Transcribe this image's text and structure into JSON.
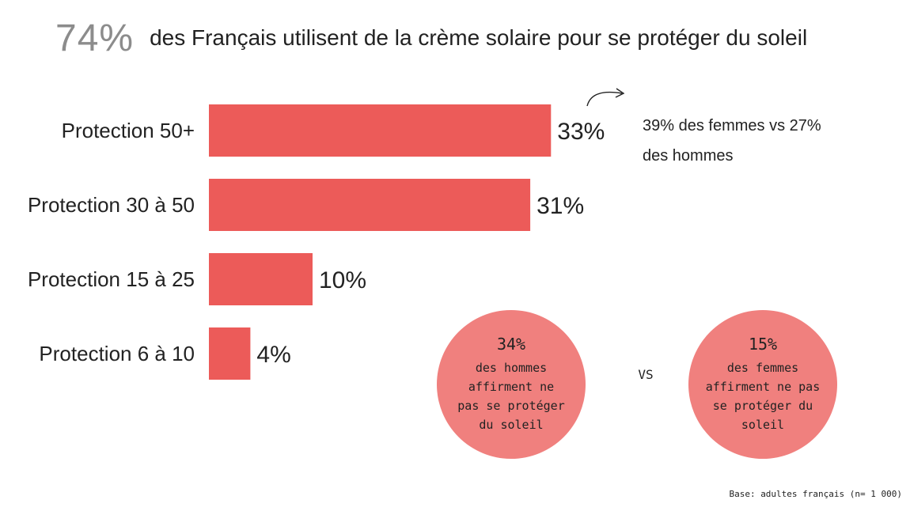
{
  "headline": {
    "percent": "74%",
    "text": "des Français utilisent de la crème solaire pour se protéger du soleil"
  },
  "chart_data": {
    "type": "bar",
    "orientation": "horizontal",
    "categories": [
      "Protection 50+",
      "Protection 30 à 50",
      "Protection 15 à 25",
      "Protection 6 à 10"
    ],
    "values": [
      33,
      31,
      10,
      4
    ],
    "value_labels": [
      "33%",
      "31%",
      "10%",
      "4%"
    ],
    "unit": "%",
    "xlim": [
      0,
      35
    ],
    "grid": false,
    "bar_color": "#ec5b59"
  },
  "annotation": {
    "line1": "39% des femmes vs 27%",
    "line2": "des hommes"
  },
  "comparison": {
    "men": {
      "percent": "34%",
      "lines": [
        "des hommes",
        "affirment ne",
        "pas se protéger",
        "du soleil"
      ]
    },
    "vs": "VS",
    "women": {
      "percent": "15%",
      "lines": [
        "des femmes",
        "affirment ne pas",
        "se protéger du",
        "soleil"
      ]
    },
    "bubble_color": "#f0807e"
  },
  "base_note": "Base: adultes français (n= 1 000)"
}
